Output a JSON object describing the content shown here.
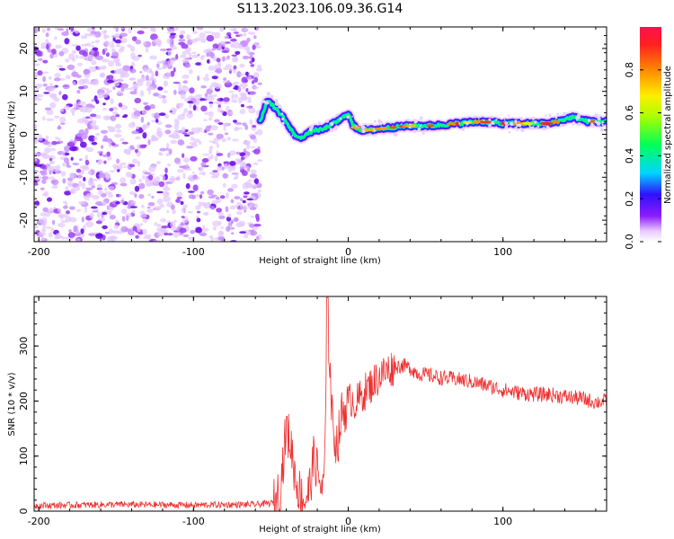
{
  "title": "S113.2023.106.09.36.G14",
  "colorbar": {
    "label": "Normalized spectral amplitude",
    "ticks": [
      "0.0",
      "0.2",
      "0.4",
      "0.6",
      "0.8"
    ],
    "range": [
      0,
      1
    ]
  },
  "chart_data": [
    {
      "type": "heatmap",
      "xlabel": "Height of straight line (km)",
      "ylabel": "Frequency (Hz)",
      "xlim": [
        -203,
        167
      ],
      "ylim": [
        -25,
        25
      ],
      "xticks": [
        "-200",
        "-100",
        "0",
        "100"
      ],
      "yticks": [
        "-20",
        "-10",
        "0",
        "10",
        "20"
      ],
      "noise_region": {
        "x": [
          -203,
          -57
        ],
        "y": [
          -25,
          25
        ]
      },
      "ridge": {
        "x": [
          -57,
          -52,
          -47,
          -42,
          -37,
          -32,
          -27,
          -22,
          -17,
          -12,
          -7,
          -3,
          0,
          3,
          8,
          15,
          25,
          40,
          55,
          70,
          85,
          100,
          115,
          130,
          145,
          155,
          167
        ],
        "y": [
          3,
          8,
          6,
          4,
          1,
          -1,
          0,
          1,
          1,
          2,
          3,
          4,
          5,
          2,
          1,
          1,
          1.5,
          2,
          2,
          2.5,
          3,
          2.5,
          2.5,
          2.5,
          4,
          3,
          3
        ]
      }
    },
    {
      "type": "line",
      "xlabel": "Height of straight line (km)",
      "ylabel": "SNR (10 * v/v)",
      "xlim": [
        -203,
        167
      ],
      "ylim": [
        0,
        390
      ],
      "xticks": [
        "-200",
        "-100",
        "0",
        "100"
      ],
      "yticks": [
        "0",
        "100",
        "200",
        "300"
      ],
      "series": [
        {
          "color": "#ee3030",
          "x": [
            -203,
            -150,
            -100,
            -60,
            -48,
            -44,
            -40,
            -37,
            -34,
            -31,
            -28,
            -25,
            -22,
            -19,
            -16,
            -13,
            -10,
            -7,
            -4,
            -1,
            2,
            5,
            10,
            15,
            20,
            25,
            30,
            35,
            40,
            45,
            50,
            55,
            60,
            70,
            80,
            90,
            100,
            110,
            120,
            130,
            140,
            150,
            160,
            167
          ],
          "y": [
            10,
            12,
            11,
            12,
            15,
            40,
            150,
            120,
            60,
            30,
            20,
            40,
            100,
            60,
            30,
            330,
            150,
            120,
            180,
            190,
            205,
            195,
            215,
            230,
            245,
            255,
            262,
            265,
            260,
            250,
            248,
            245,
            242,
            240,
            235,
            228,
            220,
            215,
            212,
            212,
            208,
            205,
            198,
            200
          ]
        }
      ]
    }
  ]
}
